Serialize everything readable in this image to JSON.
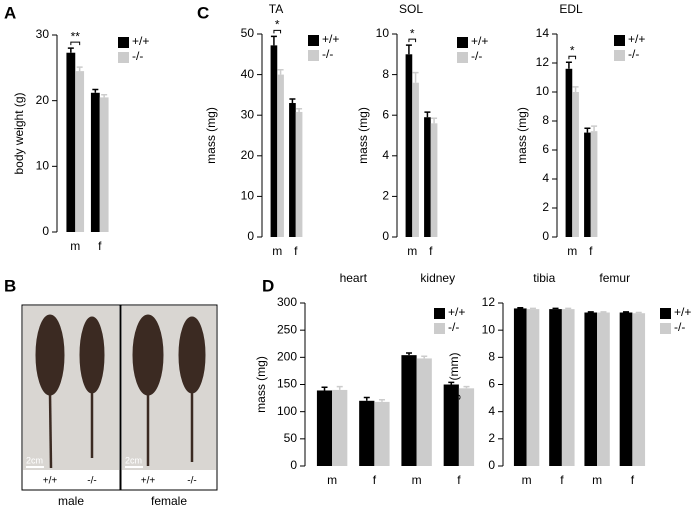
{
  "panel_labels": [
    "A",
    "B",
    "C",
    "D"
  ],
  "photo": {
    "scale_bar": "2cm",
    "genotypes": [
      "+/+",
      "-/-"
    ],
    "sexes": [
      "male",
      "female"
    ]
  },
  "chart_data": [
    {
      "type": "bar",
      "ylabel": "body weight (g)",
      "categories": [
        "m",
        "f"
      ],
      "annotation": "**",
      "ylim": [
        0,
        30
      ],
      "yticks": [
        0,
        10,
        20,
        30
      ],
      "series": [
        {
          "name": "+/+",
          "color": "#000000",
          "values": [
            27.3,
            21.2
          ],
          "errors": [
            0.7,
            0.5
          ]
        },
        {
          "name": "-/-",
          "color": "#cccccc",
          "values": [
            24.5,
            20.5
          ],
          "errors": [
            0.6,
            0.4
          ]
        }
      ]
    },
    {
      "type": "bar",
      "title": "TA",
      "ylabel": "mass (mg)",
      "categories": [
        "m",
        "f"
      ],
      "annotation": "*",
      "ylim": [
        0,
        50
      ],
      "yticks": [
        0,
        10,
        20,
        30,
        40,
        50
      ],
      "series": [
        {
          "name": "+/+",
          "color": "#000000",
          "values": [
            47.2,
            33
          ],
          "errors": [
            2.2,
            1
          ]
        },
        {
          "name": "-/-",
          "color": "#cccccc",
          "values": [
            40,
            30.8
          ],
          "errors": [
            1.2,
            0.8
          ]
        }
      ]
    },
    {
      "type": "bar",
      "title": "SOL",
      "ylabel": "mass (mg)",
      "categories": [
        "m",
        "f"
      ],
      "annotation": "*",
      "ylim": [
        0,
        10
      ],
      "yticks": [
        0,
        2,
        4,
        6,
        8,
        10
      ],
      "series": [
        {
          "name": "+/+",
          "color": "#000000",
          "values": [
            9.0,
            5.9
          ],
          "errors": [
            0.45,
            0.25
          ]
        },
        {
          "name": "-/-",
          "color": "#cccccc",
          "values": [
            7.6,
            5.6
          ],
          "errors": [
            0.5,
            0.25
          ]
        }
      ]
    },
    {
      "type": "bar",
      "title": "EDL",
      "ylabel": "mass (mg)",
      "categories": [
        "m",
        "f"
      ],
      "annotation": "*",
      "ylim": [
        0,
        14
      ],
      "yticks": [
        0,
        2,
        4,
        6,
        8,
        10,
        12,
        14
      ],
      "series": [
        {
          "name": "+/+",
          "color": "#000000",
          "values": [
            11.6,
            7.2
          ],
          "errors": [
            0.45,
            0.3
          ]
        },
        {
          "name": "-/-",
          "color": "#cccccc",
          "values": [
            10,
            7.3
          ],
          "errors": [
            0.35,
            0.35
          ]
        }
      ]
    },
    {
      "type": "bar",
      "ylabel": "mass (mg)",
      "categories": [
        "m",
        "f",
        "m",
        "f"
      ],
      "groups": [
        "heart",
        "kidney"
      ],
      "ylim": [
        0,
        300
      ],
      "yticks": [
        0,
        50,
        100,
        150,
        200,
        250,
        300
      ],
      "series": [
        {
          "name": "+/+",
          "color": "#000000",
          "values": [
            139,
            120,
            204,
            150
          ],
          "errors": [
            6,
            6,
            4,
            4
          ]
        },
        {
          "name": "-/-",
          "color": "#cccccc",
          "values": [
            140,
            118,
            198,
            143
          ],
          "errors": [
            6,
            4,
            4,
            3
          ]
        }
      ]
    },
    {
      "type": "bar",
      "ylabel": "length (mm)",
      "categories": [
        "m",
        "f",
        "m",
        "f"
      ],
      "groups": [
        "tibia",
        "femur"
      ],
      "ylim": [
        0,
        12
      ],
      "yticks": [
        0,
        2,
        4,
        6,
        8,
        10,
        12
      ],
      "series": [
        {
          "name": "+/+",
          "color": "#000000",
          "values": [
            11.6,
            11.55,
            11.3,
            11.3
          ],
          "errors": [
            0.05,
            0.05,
            0.05,
            0.05
          ]
        },
        {
          "name": "-/-",
          "color": "#cccccc",
          "values": [
            11.55,
            11.55,
            11.3,
            11.25
          ],
          "errors": [
            0.05,
            0.05,
            0.05,
            0.05
          ]
        }
      ]
    }
  ]
}
